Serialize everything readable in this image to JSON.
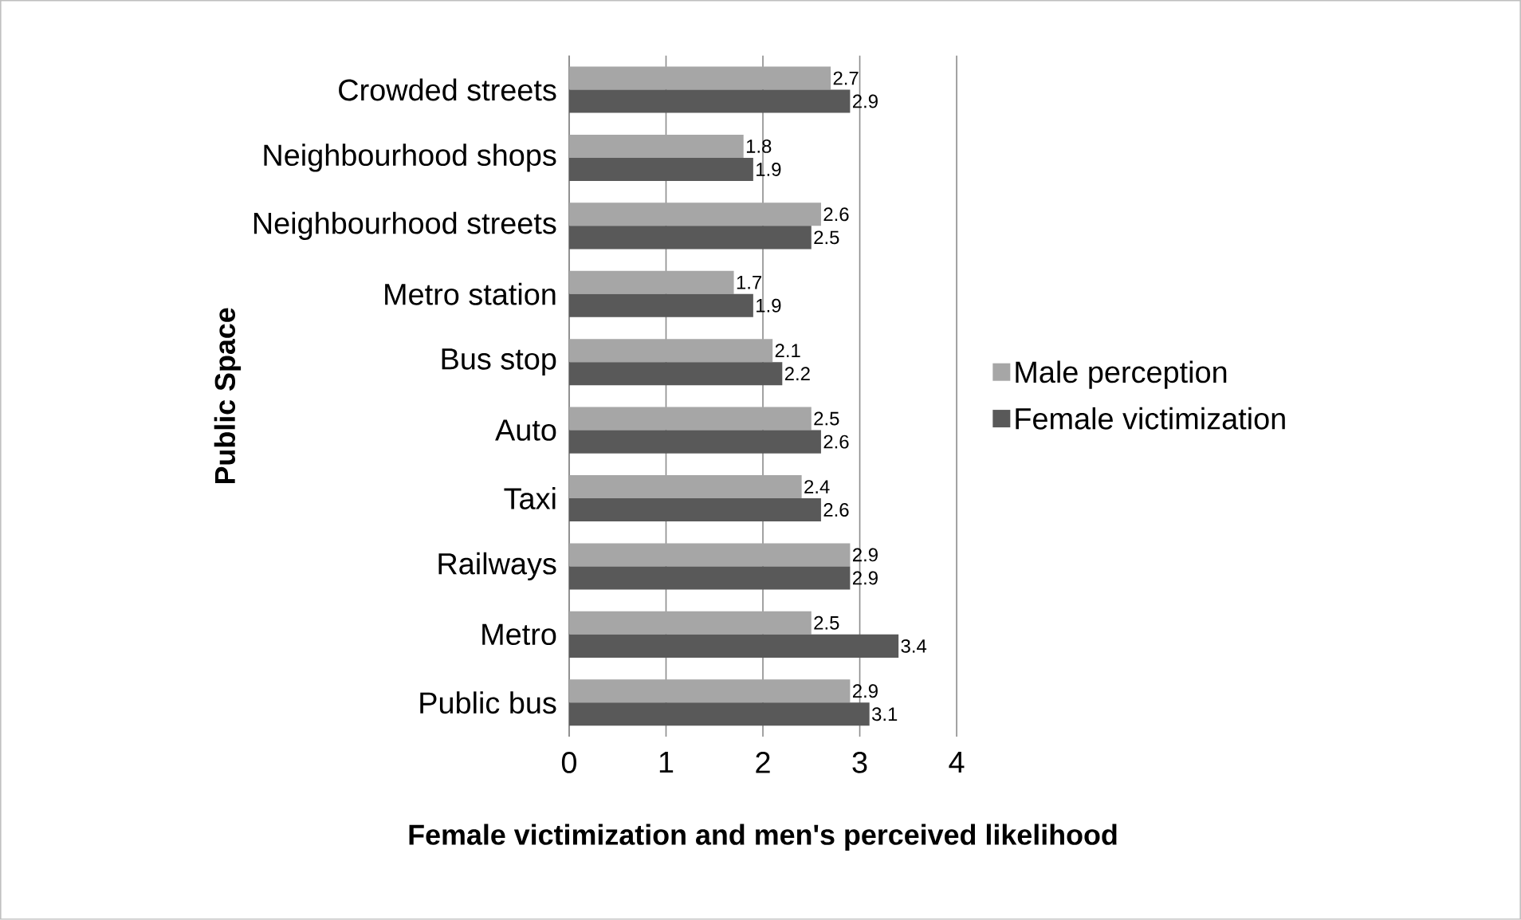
{
  "chart_data": {
    "type": "bar",
    "orientation": "horizontal",
    "xlabel": "Female victimization and men's perceived likelihood",
    "ylabel": "Public Space",
    "categories": [
      "Crowded streets",
      "Neighbourhood shops",
      "Neighbourhood streets",
      "Metro station",
      "Bus stop",
      "Auto",
      "Taxi",
      "Railways",
      "Metro",
      "Public bus"
    ],
    "series": [
      {
        "name": "Male perception",
        "color": "#a6a6a6",
        "values": [
          2.7,
          1.8,
          2.6,
          1.7,
          2.1,
          2.5,
          2.4,
          2.9,
          2.5,
          2.9
        ]
      },
      {
        "name": "Female victimization",
        "color": "#595959",
        "values": [
          2.9,
          1.9,
          2.5,
          1.9,
          2.2,
          2.6,
          2.6,
          2.9,
          3.4,
          3.1
        ]
      }
    ],
    "xlim": [
      0,
      4
    ],
    "xticks": [
      0,
      1,
      2,
      3,
      4
    ],
    "grid": "x",
    "legend": "right",
    "data_labels": true
  }
}
